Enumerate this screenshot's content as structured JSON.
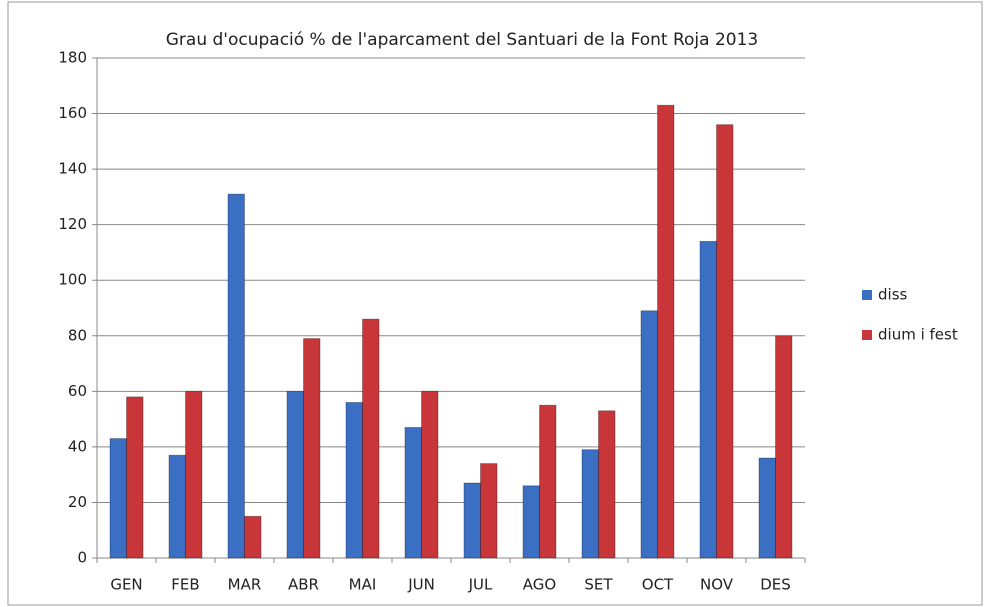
{
  "chart_data": {
    "type": "bar",
    "title": "Grau  d'ocupació % de l'aparcament del Santuari de la Font Roja 2013",
    "categories": [
      "GEN",
      "FEB",
      "MAR",
      "ABR",
      "MAI",
      "JUN",
      "JUL",
      "AGO",
      "SET",
      "OCT",
      "NOV",
      "DES"
    ],
    "series": [
      {
        "name": "diss",
        "color": "#3b6fc4",
        "values": [
          43,
          37,
          131,
          60,
          56,
          47,
          27,
          26,
          39,
          89,
          114,
          36
        ]
      },
      {
        "name": "dium i fest",
        "color": "#c8363a",
        "values": [
          58,
          60,
          15,
          79,
          86,
          60,
          34,
          55,
          53,
          163,
          156,
          80
        ]
      }
    ],
    "ylim": [
      0,
      180
    ],
    "yticks": [
      0,
      20,
      40,
      60,
      80,
      100,
      120,
      140,
      160,
      180
    ],
    "grid": true,
    "legend": "right"
  }
}
